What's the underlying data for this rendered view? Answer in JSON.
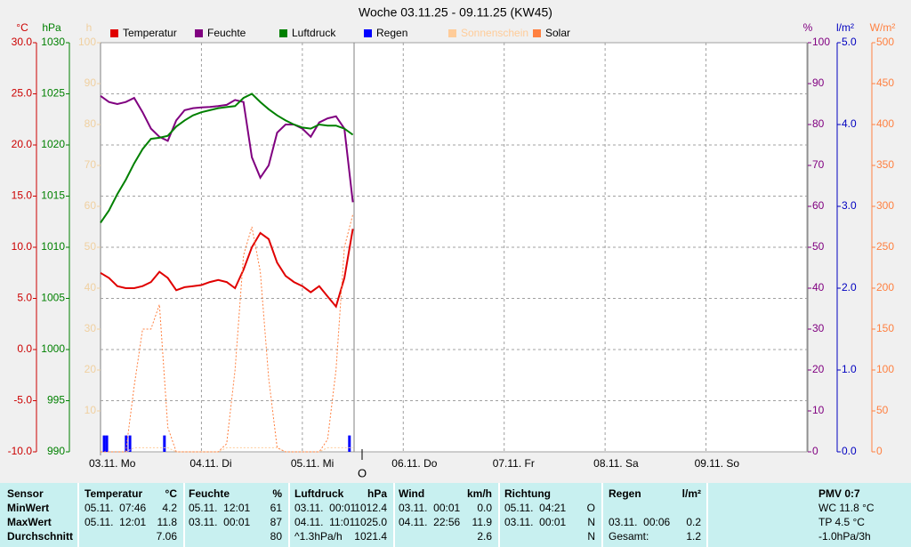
{
  "chart_data": {
    "type": "line",
    "title": "Woche 03.11.25 - 09.11.25 (KW45)",
    "legend": "top",
    "grid": true,
    "xlim": [
      0,
      168
    ],
    "xticks": [
      {
        "value": 0,
        "label": "03.11. Mo"
      },
      {
        "value": 24,
        "label": "04.11. Di"
      },
      {
        "value": 48,
        "label": "05.11. Mi"
      },
      {
        "value": 72,
        "label": "06.11. Do"
      },
      {
        "value": 96,
        "label": "07.11. Fr"
      },
      {
        "value": 120,
        "label": "08.11. Sa"
      },
      {
        "value": 144,
        "label": "09.11. So"
      }
    ],
    "marker_label": "O",
    "axes": [
      {
        "label": "°C",
        "color": "#cc0000",
        "side": "left",
        "lim": [
          -10,
          30
        ],
        "ticks": [
          {
            "value": 30,
            "label": "30.0"
          },
          {
            "value": 25,
            "label": "25.0"
          },
          {
            "value": 20,
            "label": "20.0"
          },
          {
            "value": 15,
            "label": "15.0"
          },
          {
            "value": 10,
            "label": "10.0"
          },
          {
            "value": 5,
            "label": "5.0"
          },
          {
            "value": 0,
            "label": "0.0"
          },
          {
            "value": -5,
            "label": "-5.0"
          },
          {
            "value": -10,
            "label": "-10.0"
          }
        ]
      },
      {
        "label": "hPa",
        "color": "#008000",
        "side": "left",
        "lim": [
          990,
          1030
        ],
        "ticks": [
          1030,
          1025,
          1020,
          1015,
          1010,
          1005,
          1000,
          995,
          990
        ]
      },
      {
        "label": "h",
        "color": "#f0d0a0",
        "side": "left",
        "lim": [
          0,
          100
        ],
        "ticks": [
          100,
          90,
          80,
          70,
          60,
          50,
          40,
          30,
          20,
          10
        ]
      },
      {
        "label": "%",
        "color": "#800080",
        "side": "right",
        "lim": [
          0,
          100
        ],
        "ticks": [
          100,
          90,
          80,
          70,
          60,
          50,
          40,
          30,
          20,
          10,
          0
        ]
      },
      {
        "label": "l/m²",
        "color": "#0000c0",
        "side": "right",
        "lim": [
          0,
          5
        ],
        "ticks": [
          {
            "value": 5,
            "label": "5.0"
          },
          {
            "value": 4,
            "label": "4.0"
          },
          {
            "value": 3,
            "label": "3.0"
          },
          {
            "value": 2,
            "label": "2.0"
          },
          {
            "value": 1,
            "label": "1.0"
          },
          {
            "value": 0,
            "label": "0.0"
          }
        ]
      },
      {
        "label": "W/m²",
        "color": "#ff8040",
        "side": "right",
        "lim": [
          0,
          500
        ],
        "ticks": [
          500,
          450,
          400,
          350,
          300,
          250,
          200,
          150,
          100,
          50,
          0
        ]
      }
    ],
    "x": [
      0,
      2,
      4,
      6,
      8,
      10,
      12,
      14,
      16,
      18,
      20,
      22,
      24,
      26,
      28,
      30,
      32,
      34,
      36,
      38,
      40,
      42,
      44,
      46,
      48,
      50,
      52,
      54,
      56,
      58,
      60
    ],
    "series": [
      {
        "name": "Temperatur",
        "color": "#e00000",
        "axis": 0,
        "style": "solid",
        "values": [
          7.5,
          7.0,
          6.2,
          6.0,
          6.0,
          6.2,
          6.6,
          7.6,
          7.0,
          5.8,
          6.1,
          6.2,
          6.3,
          6.6,
          6.8,
          6.6,
          6.0,
          7.8,
          10.0,
          11.4,
          10.8,
          8.5,
          7.2,
          6.6,
          6.2,
          5.6,
          6.2,
          5.2,
          4.2,
          7.0,
          11.8
        ]
      },
      {
        "name": "Feuchte",
        "color": "#800080",
        "axis": 3,
        "style": "solid",
        "values": [
          87,
          85.5,
          85,
          85.5,
          86.5,
          83,
          79,
          77,
          76,
          81,
          83.5,
          84,
          84.2,
          84.3,
          84.5,
          84.8,
          86,
          85.5,
          72,
          67,
          70,
          78,
          80,
          80,
          79,
          77,
          80.5,
          81.5,
          82,
          79,
          61
        ]
      },
      {
        "name": "Luftdruck",
        "color": "#008000",
        "axis": 1,
        "style": "solid",
        "values": [
          1012.4,
          1013.6,
          1015.2,
          1016.6,
          1018.2,
          1019.6,
          1020.6,
          1020.7,
          1020.9,
          1021.8,
          1022.4,
          1022.9,
          1023.2,
          1023.4,
          1023.6,
          1023.7,
          1023.8,
          1024.6,
          1025.0,
          1024.2,
          1023.5,
          1022.9,
          1022.4,
          1022.0,
          1021.7,
          1021.6,
          1022.0,
          1021.9,
          1021.9,
          1021.6,
          1021.0
        ]
      },
      {
        "name": "Regen",
        "color": "#0000ff",
        "axis": 4,
        "style": "bar",
        "x": [
          0.85,
          1.5,
          6.1,
          7,
          15.2,
          59.2
        ],
        "values": [
          0.2,
          0.2,
          0.2,
          0.2,
          0.2,
          0.2
        ]
      },
      {
        "name": "Sonnenschein",
        "color": "#ffcc99",
        "axis": 2,
        "style": "dotted",
        "values": [
          0,
          0,
          0,
          0,
          1,
          1,
          1,
          1,
          1,
          0,
          0,
          0,
          0,
          0,
          0,
          1,
          1,
          1,
          1,
          1,
          1,
          1,
          0,
          0,
          0,
          0,
          0,
          1,
          1,
          1,
          1
        ]
      },
      {
        "name": "Solar",
        "color": "#ff8040",
        "axis": 5,
        "style": "dotted",
        "values": [
          0,
          0,
          0,
          0,
          80,
          150,
          150,
          180,
          30,
          0,
          0,
          0,
          0,
          0,
          0,
          10,
          100,
          240,
          275,
          220,
          90,
          5,
          0,
          0,
          0,
          0,
          0,
          15,
          100,
          250,
          290
        ]
      }
    ]
  },
  "table": {
    "header": [
      "Sensor",
      "Temperatur",
      "°C",
      "Feuchte",
      "%",
      "Luftdruck",
      "hPa",
      "Wind",
      "km/h",
      "Richtung",
      null,
      "Regen",
      "l/m²",
      "PMV 0:7"
    ],
    "rows": [
      [
        "MinWert",
        "05.11.  07:46",
        "4.2",
        "05.11.  12:01",
        "61",
        "03.11.  00:01",
        "1012.4",
        "03.11.  00:01",
        "0.0",
        "05.11.  04:21",
        "O",
        null,
        null,
        "WC 11.8 °C"
      ],
      [
        "MaxWert",
        "05.11.  12:01",
        "11.8",
        "03.11.  00:01",
        "87",
        "04.11.  11:01",
        "1025.0",
        "04.11.  22:56",
        "11.9",
        "03.11.  00:01",
        "N",
        "03.11.  00:06",
        "0.2",
        "TP 4.5 °C"
      ],
      [
        "Durchschnitt",
        null,
        "7.06",
        null,
        "80",
        "^1.3hPa/h",
        "1021.4",
        null,
        "2.6",
        null,
        "N",
        "Gesamt:",
        "1.2",
        "-1.0hPa/3h"
      ]
    ]
  }
}
